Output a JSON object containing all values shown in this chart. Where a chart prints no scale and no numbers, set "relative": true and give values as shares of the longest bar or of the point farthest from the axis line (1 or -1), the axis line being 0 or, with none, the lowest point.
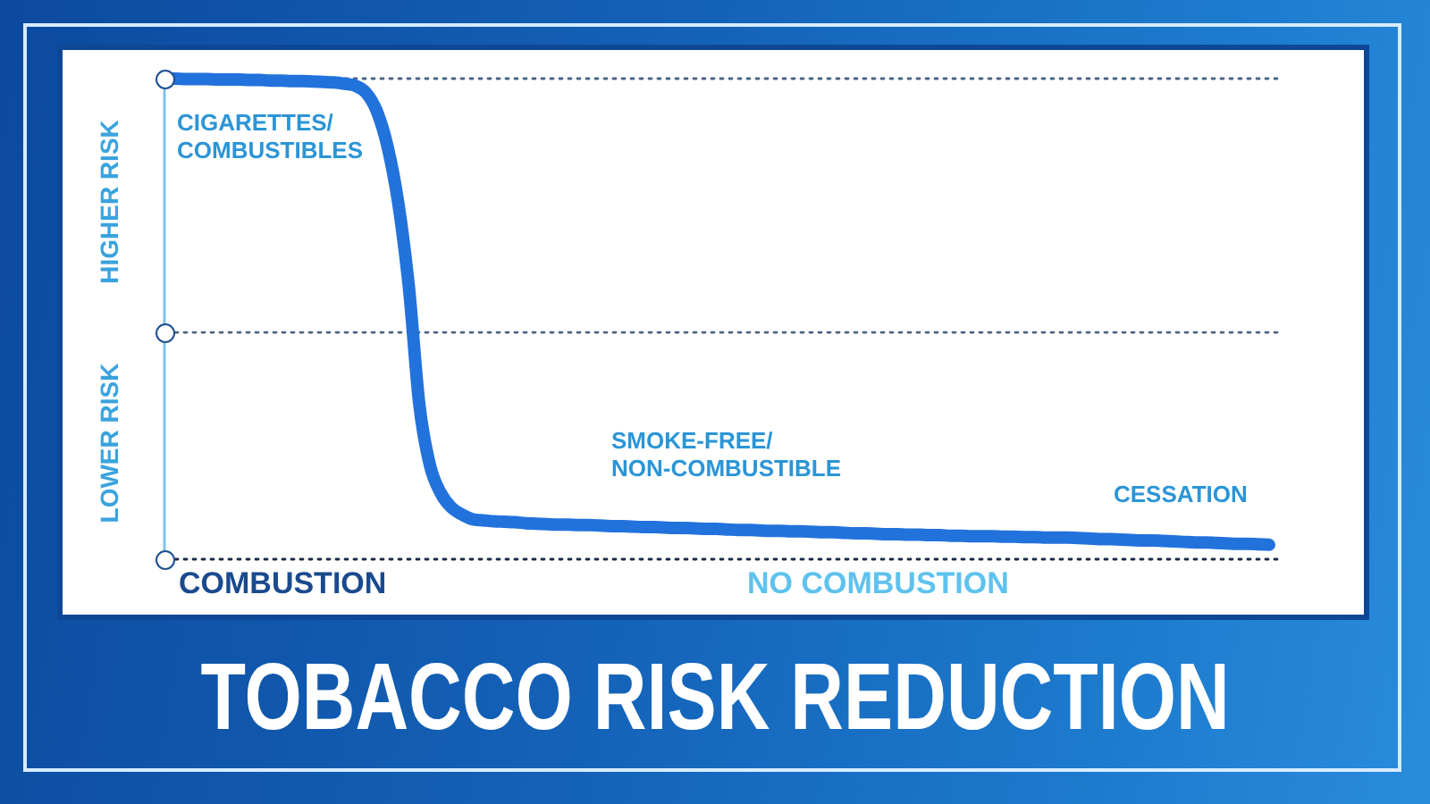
{
  "chart_data": {
    "type": "line",
    "title": "TOBACCO RISK REDUCTION",
    "relative": true,
    "tick_labels": false,
    "annotations": [
      "CIGARETTES/\nCOMBUSTIBLES",
      "SMOKE-FREE/\nNON-COMBUSTIBLE",
      "CESSATION",
      "HIGHER RISK",
      "LOWER RISK",
      "COMBUSTION",
      "NO COMBUSTION"
    ],
    "categories": [
      null,
      null,
      null,
      null,
      null,
      null,
      null,
      null,
      null,
      null,
      null,
      null,
      null,
      null,
      null,
      null,
      null,
      null,
      null,
      null,
      null,
      null,
      null,
      null,
      null,
      null,
      null,
      null,
      null,
      null,
      null,
      null,
      null,
      null,
      null,
      null,
      null,
      null,
      null,
      null,
      null,
      null,
      null,
      null,
      null,
      null,
      null,
      null,
      null,
      null,
      null,
      null,
      null,
      null,
      null,
      null,
      null,
      null,
      null,
      null,
      null,
      null,
      null,
      null,
      null,
      null,
      null,
      null,
      null,
      null,
      null,
      null,
      null,
      null,
      null,
      null,
      null,
      null,
      null,
      null,
      null,
      null,
      null,
      null,
      null,
      null,
      null,
      null,
      null,
      null,
      null,
      null,
      null,
      null,
      null,
      null,
      null,
      null,
      null,
      null,
      null,
      null,
      null,
      null,
      null
    ],
    "color": "#2272dc",
    "values": [
      1.0,
      1.0,
      0.999,
      0.999,
      0.999,
      0.998,
      0.998,
      0.998,
      0.997,
      0.997,
      0.996,
      0.996,
      0.995,
      0.995,
      0.994,
      0.993,
      0.992,
      0.989,
      0.985,
      0.97,
      0.932,
      0.859,
      0.743,
      0.569,
      0.321,
      0.195,
      0.138,
      0.108,
      0.093,
      0.083,
      0.081,
      0.079,
      0.078,
      0.077,
      0.075,
      0.074,
      0.073,
      0.072,
      0.072,
      0.071,
      0.071,
      0.07,
      0.069,
      0.069,
      0.068,
      0.067,
      0.067,
      0.066,
      0.065,
      0.065,
      0.064,
      0.063,
      0.063,
      0.062,
      0.061,
      0.061,
      0.06,
      0.059,
      0.059,
      0.058,
      0.058,
      0.057,
      0.056,
      0.056,
      0.055,
      0.054,
      0.054,
      0.053,
      0.052,
      0.052,
      0.051,
      0.051,
      0.05,
      0.05,
      0.049,
      0.049,
      0.048,
      0.048,
      0.048,
      0.047,
      0.047,
      0.046,
      0.046,
      0.045,
      0.045,
      0.045,
      0.044,
      0.043,
      0.042,
      0.042,
      0.041,
      0.04,
      0.039,
      0.039,
      0.038,
      0.037,
      0.036,
      0.035,
      0.035,
      0.034,
      0.033,
      0.032,
      0.032,
      0.031,
      0.03
    ],
    "ref_lines": [
      {
        "axis": "y",
        "value": 1,
        "color": "#4b6584",
        "line_style": "dotted"
      },
      {
        "axis": "y",
        "value": 0.472,
        "color": "#4b6584",
        "line_style": "dotted"
      },
      {
        "axis": "y",
        "value": 0,
        "color": "#1b2b45",
        "line_style": "dotted"
      }
    ]
  }
}
